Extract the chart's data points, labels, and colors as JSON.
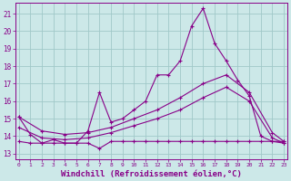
{
  "background_color": "#cce8e8",
  "grid_color": "#a0c8c8",
  "line_color": "#880088",
  "xlabel": "Windchill (Refroidissement éolien,°C)",
  "xlabel_fontsize": 6.5,
  "ytick_values": [
    13,
    14,
    15,
    16,
    17,
    18,
    19,
    20,
    21
  ],
  "xtick_values": [
    0,
    1,
    2,
    3,
    4,
    5,
    6,
    7,
    8,
    9,
    10,
    11,
    12,
    13,
    14,
    15,
    16,
    17,
    18,
    19,
    20,
    21,
    22,
    23
  ],
  "xlim": [
    -0.3,
    23.3
  ],
  "ylim": [
    12.7,
    21.6
  ],
  "series1_x": [
    0,
    1,
    2,
    3,
    4,
    5,
    6,
    7,
    8,
    9,
    10,
    11,
    12,
    13,
    14,
    15,
    16,
    17,
    18,
    19,
    20,
    21,
    22,
    23
  ],
  "series1_y": [
    15.1,
    14.1,
    13.6,
    13.8,
    13.6,
    13.6,
    14.3,
    16.5,
    14.8,
    15.0,
    15.5,
    16.0,
    17.5,
    17.5,
    18.3,
    20.3,
    21.3,
    19.3,
    18.3,
    17.2,
    16.3,
    14.0,
    13.7,
    13.7
  ],
  "series2_x": [
    0,
    1,
    2,
    3,
    4,
    5,
    6,
    7,
    8,
    9,
    10,
    11,
    12,
    13,
    14,
    15,
    16,
    17,
    18,
    19,
    20,
    21,
    22,
    23
  ],
  "series2_y": [
    13.7,
    13.6,
    13.6,
    13.6,
    13.6,
    13.6,
    13.6,
    13.3,
    13.7,
    13.7,
    13.7,
    13.7,
    13.7,
    13.7,
    13.7,
    13.7,
    13.7,
    13.7,
    13.7,
    13.7,
    13.7,
    13.7,
    13.7,
    13.6
  ],
  "series3_x": [
    0,
    2,
    4,
    6,
    8,
    10,
    12,
    14,
    16,
    18,
    20,
    22,
    23
  ],
  "series3_y": [
    15.1,
    14.3,
    14.1,
    14.2,
    14.5,
    15.0,
    15.5,
    16.2,
    17.0,
    17.5,
    16.5,
    14.2,
    13.7
  ],
  "series4_x": [
    0,
    2,
    4,
    6,
    8,
    10,
    12,
    14,
    16,
    18,
    20,
    22,
    23
  ],
  "series4_y": [
    14.5,
    13.9,
    13.8,
    13.9,
    14.2,
    14.6,
    15.0,
    15.5,
    16.2,
    16.8,
    16.0,
    13.9,
    13.6
  ]
}
